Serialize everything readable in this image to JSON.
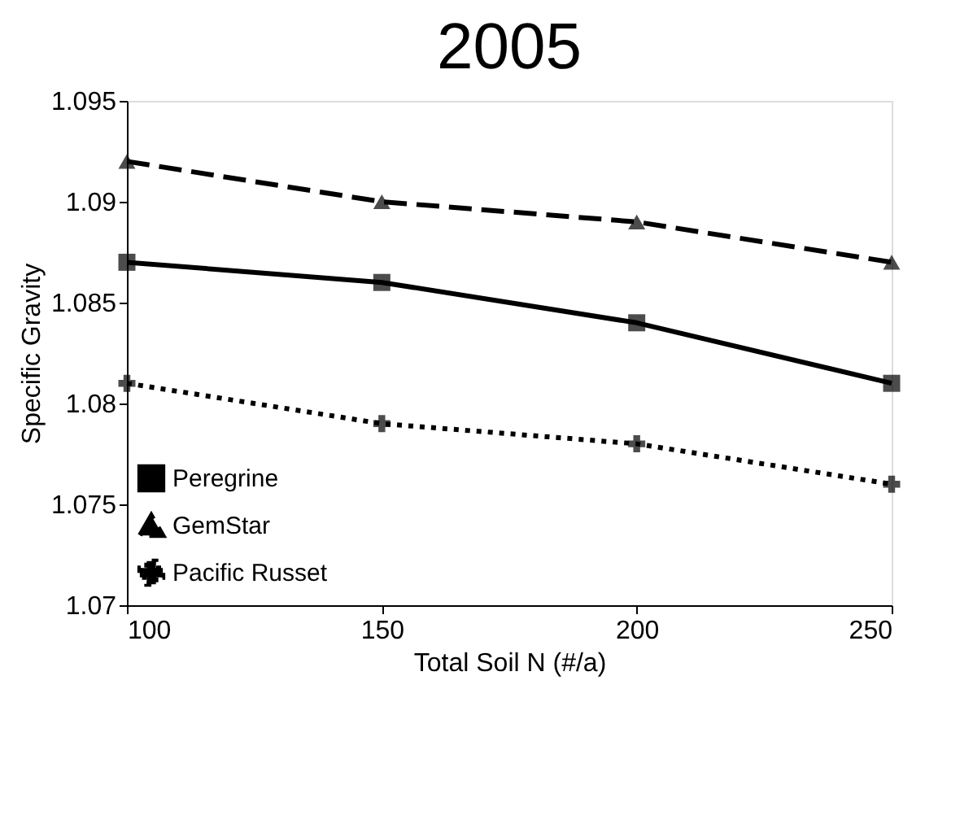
{
  "chart_data": {
    "type": "line",
    "title": "2005",
    "xlabel": "Total Soil N (#/a)",
    "ylabel": "Specific Gravity",
    "x": [
      100,
      150,
      200,
      250
    ],
    "series": [
      {
        "name": "Peregrine",
        "color": "#000000",
        "values": [
          1.087,
          1.086,
          1.084,
          1.081
        ],
        "marker": "square",
        "line_style": "solid"
      },
      {
        "name": "GemStar",
        "color": "#000000",
        "values": [
          1.092,
          1.09,
          1.089,
          1.087
        ],
        "marker": "triangle",
        "line_style": "dashed"
      },
      {
        "name": "Pacific Russet",
        "color": "#000000",
        "values": [
          1.081,
          1.079,
          1.078,
          1.076
        ],
        "marker": "cross",
        "line_style": "dotted"
      }
    ],
    "xlim": [
      100,
      250
    ],
    "xticks": [
      100,
      150,
      200,
      250
    ],
    "ylim": [
      1.07,
      1.095
    ],
    "yticks": [
      1.07,
      1.075,
      1.08,
      1.085,
      1.09,
      1.095
    ],
    "grid": false,
    "legend": "bottom left"
  }
}
